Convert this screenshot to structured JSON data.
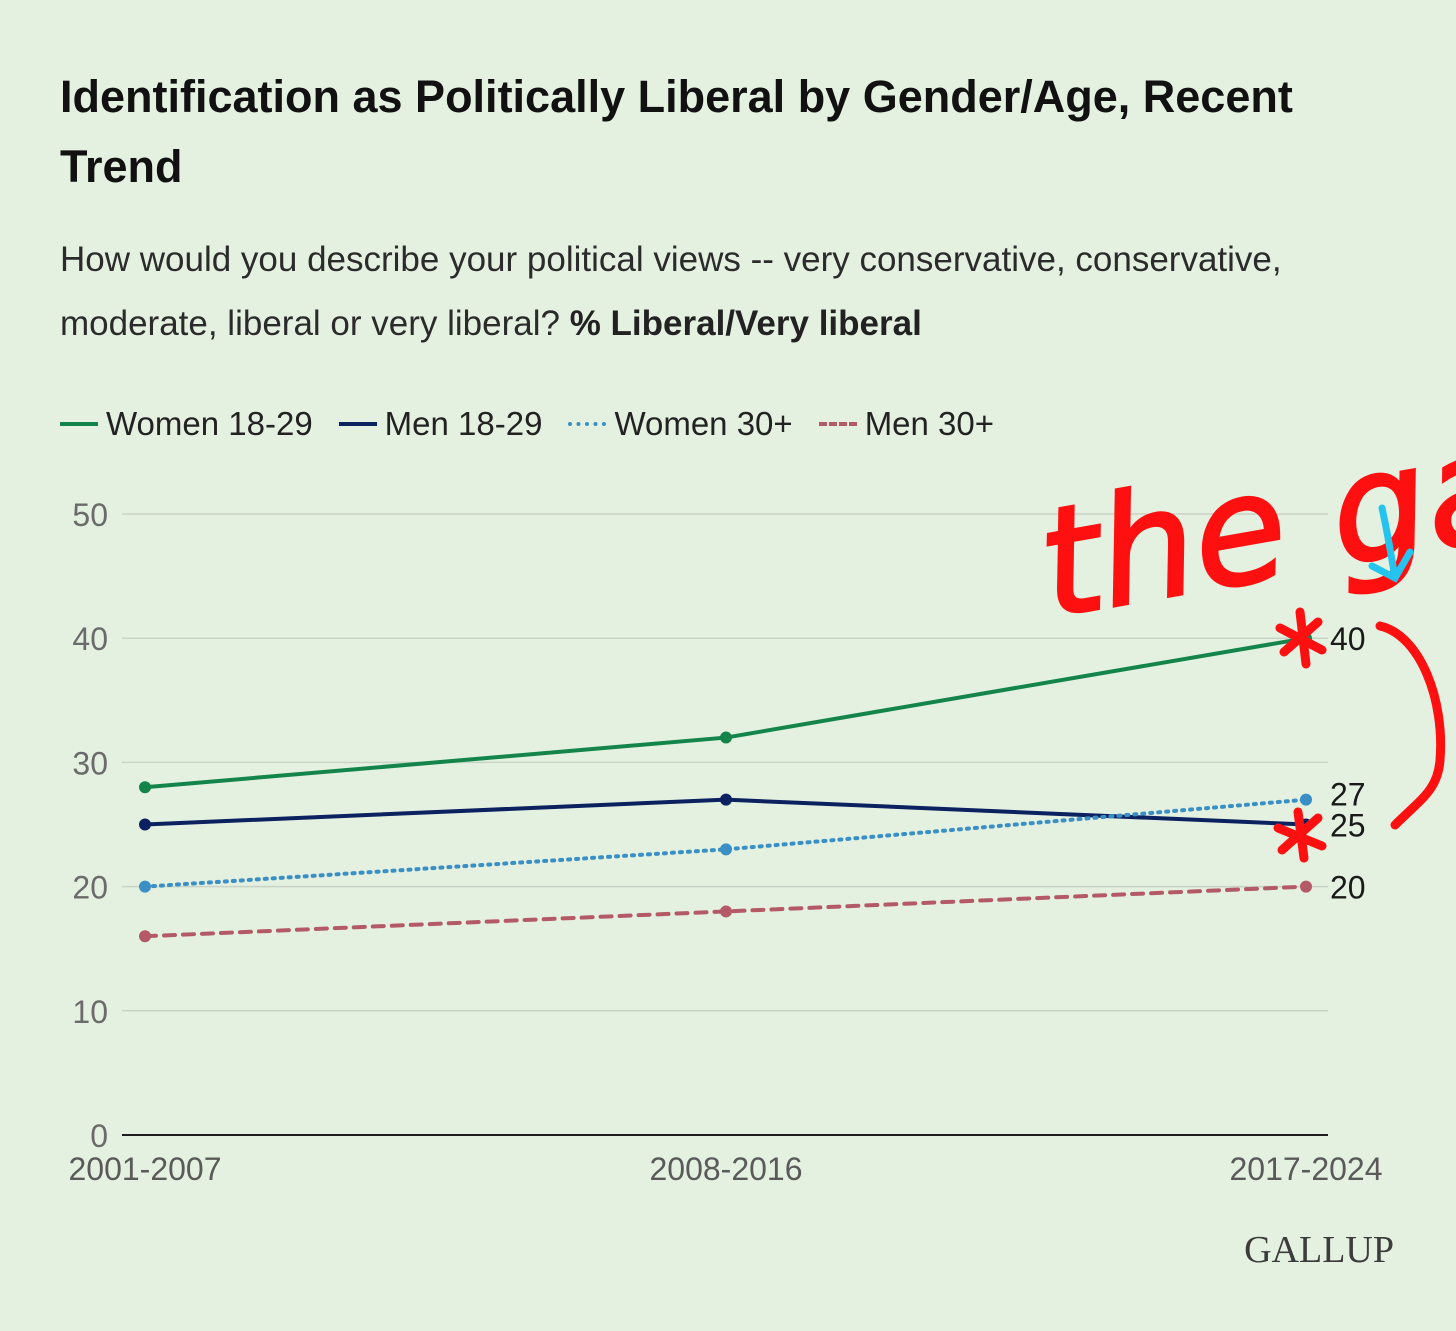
{
  "title": "Identification as Politically Liberal by Gender/Age, Recent Trend",
  "subtitle_question": "How would you describe your political views -- very conservative, conservative, moderate, liberal or very liberal?",
  "subtitle_measure": "% Liberal/Very liberal",
  "brand": "GALLUP",
  "annotation_text": "the gap",
  "colors": {
    "background": "#e4f1e1",
    "women_18_29": "#13854a",
    "men_18_29": "#0b2160",
    "women_30_plus": "#3a8fc4",
    "men_30_plus": "#b45a66",
    "annotation_red": "#ff1010",
    "annotation_blue": "#25c4ee"
  },
  "chart_data": {
    "type": "line",
    "categories": [
      "2001-2007",
      "2008-2016",
      "2017-2024"
    ],
    "y_ticks": [
      "0",
      "10",
      "20",
      "30",
      "40",
      "50"
    ],
    "ylim": [
      0,
      50
    ],
    "grid": true,
    "legend_position": "top-left",
    "series": [
      {
        "name": "Women 18-29",
        "values": [
          28,
          32,
          40
        ],
        "style": "solid",
        "color": "#13854a",
        "end_label": "40"
      },
      {
        "name": "Men 18-29",
        "values": [
          25,
          27,
          25
        ],
        "style": "solid",
        "color": "#0b2160",
        "end_label": "25"
      },
      {
        "name": "Women 30+",
        "values": [
          20,
          23,
          27
        ],
        "style": "dotted",
        "color": "#3a8fc4",
        "end_label": "27"
      },
      {
        "name": "Men 30+",
        "values": [
          16,
          18,
          20
        ],
        "style": "dashed",
        "color": "#b45a66",
        "end_label": "20"
      }
    ]
  }
}
